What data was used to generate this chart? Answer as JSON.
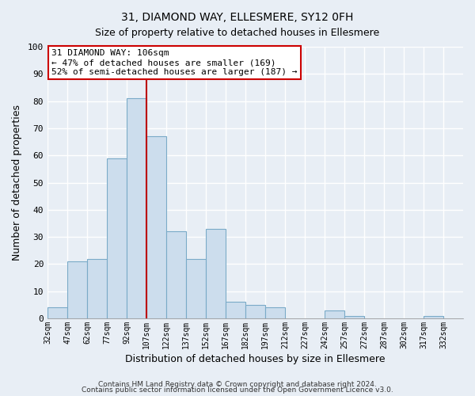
{
  "title": "31, DIAMOND WAY, ELLESMERE, SY12 0FH",
  "subtitle": "Size of property relative to detached houses in Ellesmere",
  "xlabel": "Distribution of detached houses by size in Ellesmere",
  "ylabel": "Number of detached properties",
  "footnote1": "Contains HM Land Registry data © Crown copyright and database right 2024.",
  "footnote2": "Contains public sector information licensed under the Open Government Licence v3.0.",
  "bin_labels": [
    "32sqm",
    "47sqm",
    "62sqm",
    "77sqm",
    "92sqm",
    "107sqm",
    "122sqm",
    "137sqm",
    "152sqm",
    "167sqm",
    "182sqm",
    "197sqm",
    "212sqm",
    "227sqm",
    "242sqm",
    "257sqm",
    "272sqm",
    "287sqm",
    "302sqm",
    "317sqm",
    "332sqm"
  ],
  "bar_values": [
    4,
    21,
    22,
    59,
    81,
    67,
    32,
    22,
    33,
    6,
    5,
    4,
    0,
    0,
    3,
    1,
    0,
    0,
    0,
    1,
    0
  ],
  "bar_color": "#ccdded",
  "bar_edge_color": "#7aaac8",
  "vline_x_index": 5,
  "vline_color": "#bb0000",
  "ylim": [
    0,
    100
  ],
  "yticks": [
    0,
    10,
    20,
    30,
    40,
    50,
    60,
    70,
    80,
    90,
    100
  ],
  "annotation_title": "31 DIAMOND WAY: 106sqm",
  "annotation_line1": "← 47% of detached houses are smaller (169)",
  "annotation_line2": "52% of semi-detached houses are larger (187) →",
  "annotation_box_color": "#ffffff",
  "annotation_border_color": "#cc0000",
  "background_color": "#e8eef5",
  "plot_bg_color": "#e8eef5",
  "grid_color": "#ffffff",
  "title_fontsize": 10,
  "subtitle_fontsize": 9
}
